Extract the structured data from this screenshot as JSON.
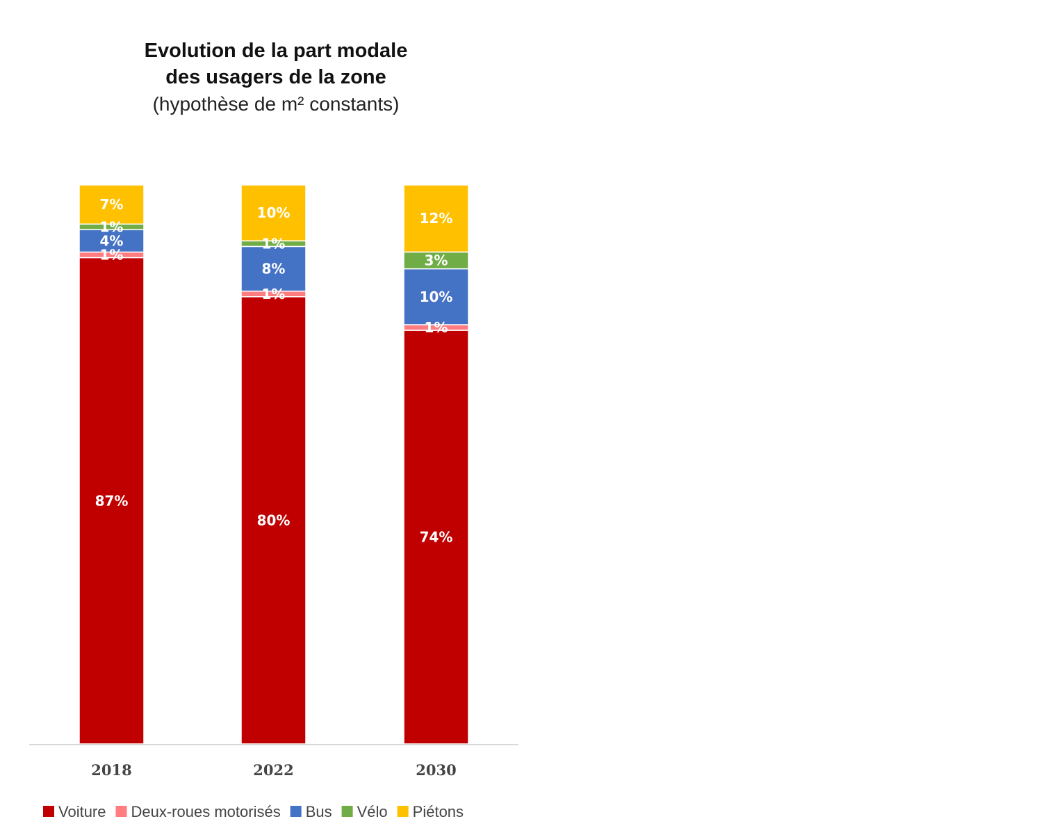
{
  "chart_data": {
    "type": "bar",
    "stacked": true,
    "title_line1": "Evolution de la part modale",
    "title_line2": "des usagers de la zone",
    "subtitle": "(hypothèse de m² constants)",
    "xlabel": "",
    "ylabel": "",
    "categories": [
      "2018",
      "2022",
      "2030"
    ],
    "series": [
      {
        "name": "Voiture",
        "color": "#c00000",
        "label_color": "#ffffff",
        "values": [
          87,
          80,
          74
        ],
        "labels": [
          "87%",
          "80%",
          "74%"
        ]
      },
      {
        "name": "Deux-roues motorisés",
        "color": "#ff7c80",
        "label_color": "#ffffff",
        "values": [
          1,
          1,
          1
        ],
        "labels": [
          "1%",
          "1%",
          "1%"
        ]
      },
      {
        "name": "Bus",
        "color": "#4472c4",
        "label_color": "#ffffff",
        "values": [
          4,
          8,
          10
        ],
        "labels": [
          "4%",
          "8%",
          "10%"
        ]
      },
      {
        "name": "Vélo",
        "color": "#70ad47",
        "label_color": "#ffffff",
        "values": [
          1,
          1,
          3
        ],
        "labels": [
          "1%",
          "1%",
          "3%"
        ]
      },
      {
        "name": "Piétons",
        "color": "#ffc000",
        "label_color": "#ffffff",
        "values": [
          7,
          10,
          12
        ],
        "labels": [
          "7%",
          "10%",
          "12%"
        ]
      }
    ],
    "legend_position": "bottom",
    "grid": false,
    "axis_line_color": "#d9d9d9"
  }
}
